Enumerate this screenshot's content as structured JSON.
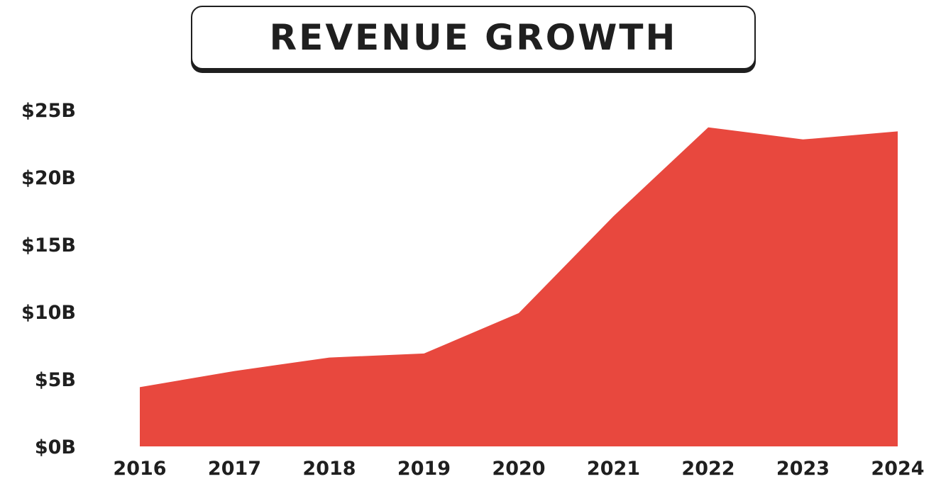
{
  "chart_data": {
    "type": "area",
    "title": "REVENUE GROWTH",
    "x": [
      "2016",
      "2017",
      "2018",
      "2019",
      "2020",
      "2021",
      "2022",
      "2023",
      "2024"
    ],
    "series": [
      {
        "values": [
          4.4,
          5.6,
          6.6,
          6.9,
          9.9,
          17.1,
          23.7,
          22.8,
          23.4
        ]
      }
    ],
    "y_tick_labels": [
      "$0B",
      "$5B",
      "$10B",
      "$15B",
      "$20B",
      "$25B"
    ],
    "y_ticks": [
      0,
      5,
      10,
      15,
      20,
      25
    ],
    "ylim": [
      0,
      25
    ],
    "grid": false,
    "legend": "none",
    "colors": {
      "area": "#E8483E",
      "text": "#1F1F1F"
    }
  }
}
